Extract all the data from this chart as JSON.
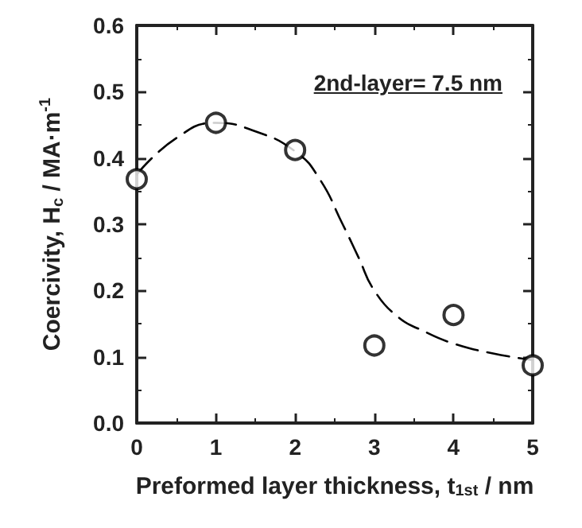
{
  "chart_data": {
    "type": "scatter",
    "xlabel": "Preformed layer thickness, t$_{1st}$ / nm",
    "ylabel": "Coercivity, H$_{c}$ / MA·m$^{-1}$",
    "annotations": [
      "2nd-layer= 7.5 nm"
    ],
    "xlim": [
      0,
      5
    ],
    "xticks": [
      0,
      1,
      2,
      3,
      4,
      5
    ],
    "ylim": [
      0,
      0.6
    ],
    "yticks": [
      {
        "value": 0,
        "label": "0.0"
      },
      0.1,
      0.2,
      0.3,
      0.4,
      0.5,
      0.6
    ],
    "series": [
      {
        "type": "scatter",
        "color": "#000000",
        "marker": "circle",
        "x": [
          0,
          1,
          2,
          3,
          4,
          5
        ],
        "values": [
          0.368,
          0.453,
          0.412,
          0.117,
          0.163,
          0.087
        ]
      },
      {
        "type": "line",
        "color": "#000000",
        "marker": "none",
        "line_style": "dashed",
        "x": [
          0,
          0.5,
          1,
          1.5,
          2,
          2.3,
          2.6,
          2.8,
          3.0,
          3.3,
          3.6,
          4,
          4.5,
          5
        ],
        "values": [
          0.375,
          0.43,
          0.453,
          0.44,
          0.41,
          0.37,
          0.3,
          0.25,
          0.2,
          0.16,
          0.14,
          0.12,
          0.105,
          0.095
        ]
      }
    ]
  }
}
